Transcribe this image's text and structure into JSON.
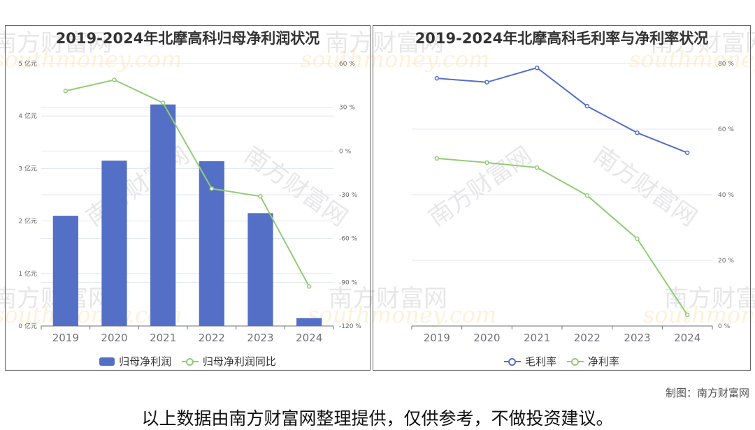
{
  "left_chart": {
    "title": "2019-2024年北摩高科归母净利润状况",
    "legend": {
      "bar_label": "归母净利润",
      "line_label": "归母净利润同比"
    },
    "left_axis_ticks": [
      "0 亿元",
      "1 亿元",
      "2 亿元",
      "3 亿元",
      "4 亿元",
      "5 亿元"
    ],
    "right_axis_ticks": [
      "-120 %",
      "-90 %",
      "-60 %",
      "-30 %",
      "0 %",
      "30 %",
      "60 %"
    ]
  },
  "right_chart": {
    "title": "2019-2024年北摩高科毛利率与净利率状况",
    "legend": {
      "series1_label": "毛利率",
      "series2_label": "净利率"
    },
    "axis_ticks": [
      "0 %",
      "20 %",
      "40 %",
      "60 %",
      "80 %"
    ]
  },
  "credit": "制图：南方财富网",
  "footer": "以上数据由南方财富网整理提供，仅供参考，不做投资建议。",
  "watermark": {
    "cn": "南方财富网",
    "en": "southmoney.com"
  },
  "colors": {
    "bar": "#5470c6",
    "line_green": "#91cc75",
    "line_blue": "#5470c6",
    "grid": "#e0e6f1"
  },
  "chart_data": [
    {
      "type": "bar",
      "title": "2019-2024年北摩高科归母净利润状况",
      "categories": [
        "2019",
        "2020",
        "2021",
        "2022",
        "2023",
        "2024"
      ],
      "series": [
        {
          "name": "归母净利润",
          "type": "bar",
          "axis": "left",
          "unit": "亿元",
          "values": [
            2.1,
            3.15,
            4.22,
            3.14,
            2.15,
            0.15
          ]
        },
        {
          "name": "归母净利润同比",
          "type": "line",
          "axis": "right",
          "unit": "%",
          "values": [
            41.2,
            48.8,
            33.0,
            -25.8,
            -31.1,
            -92.9
          ]
        }
      ],
      "xlabel": "",
      "ylabel_left": "亿元",
      "ylabel_right": "%",
      "ylim_left": [
        0,
        5
      ],
      "ylim_right": [
        -120,
        60
      ],
      "grid": true,
      "legend_position": "bottom"
    },
    {
      "type": "line",
      "title": "2019-2024年北摩高科毛利率与净利率状况",
      "categories": [
        "2019",
        "2020",
        "2021",
        "2022",
        "2023",
        "2024"
      ],
      "series": [
        {
          "name": "毛利率",
          "unit": "%",
          "values": [
            75.5,
            74.3,
            78.7,
            67.0,
            58.9,
            52.8
          ]
        },
        {
          "name": "净利率",
          "unit": "%",
          "values": [
            51.1,
            49.8,
            48.3,
            39.8,
            26.6,
            3.4
          ]
        }
      ],
      "xlabel": "",
      "ylabel": "%",
      "ylim": [
        0,
        80
      ],
      "y_axis_position": "right",
      "grid": true,
      "legend_position": "bottom"
    }
  ]
}
